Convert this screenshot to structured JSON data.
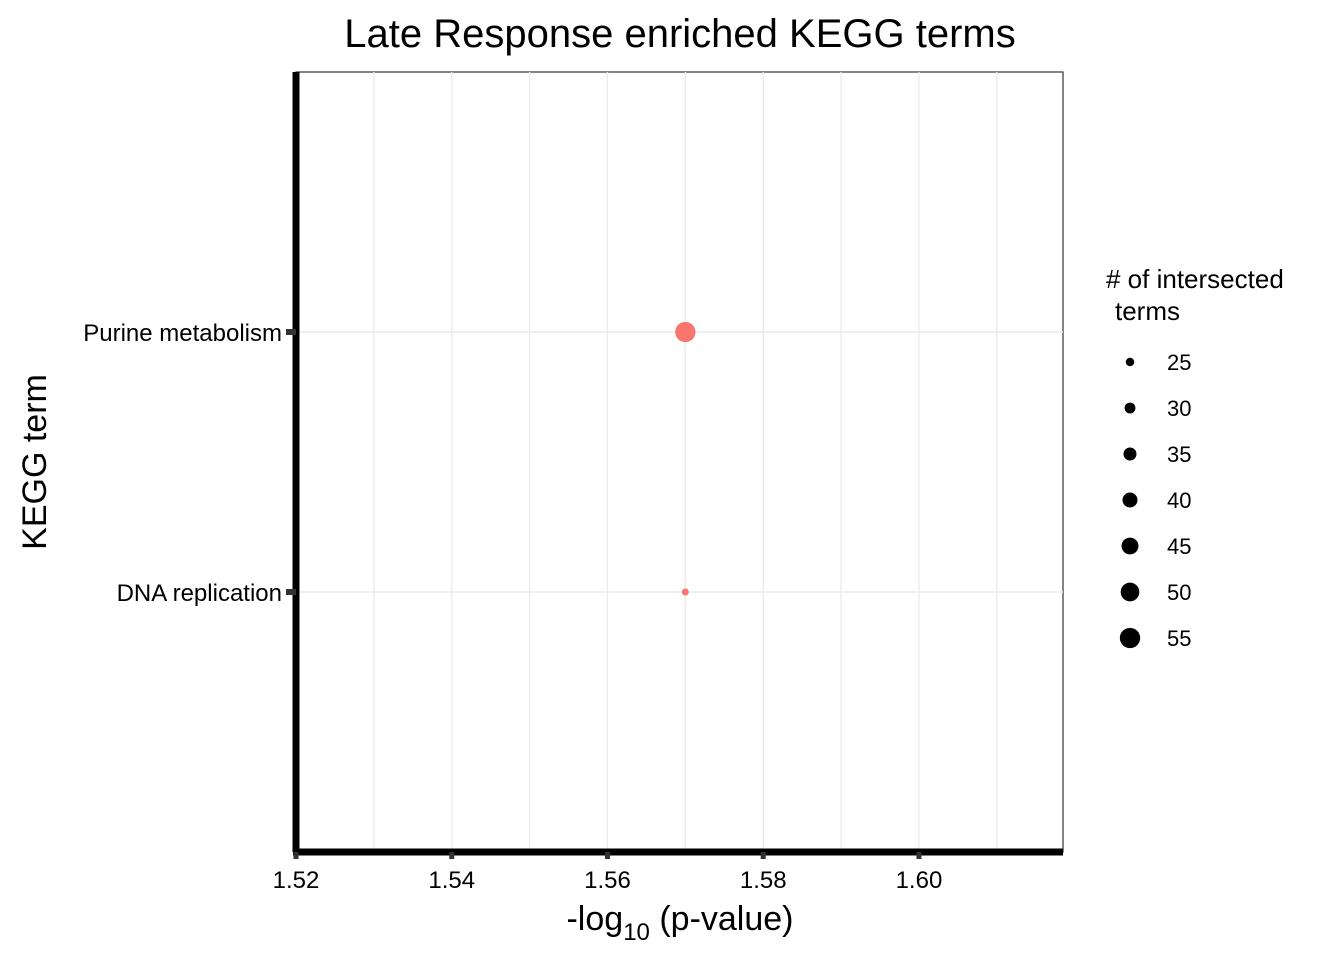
{
  "chart_data": {
    "type": "scatter",
    "title": "Late Response enriched KEGG terms",
    "xlabel": {
      "prefix": "-log",
      "subscript": "10",
      "suffix": " (p-value)"
    },
    "ylabel": "KEGG term",
    "x_ticks": [
      1.52,
      1.54,
      1.56,
      1.58,
      1.6
    ],
    "x_tick_labels": [
      "1.52",
      "1.54",
      "1.56",
      "1.58",
      "1.60"
    ],
    "xlim": [
      1.52,
      1.6185
    ],
    "categories": [
      "DNA replication",
      "Purine metabolism"
    ],
    "points": [
      {
        "term": "Purine metabolism",
        "x": 1.57,
        "size": 55,
        "color": "#F8766D"
      },
      {
        "term": "DNA replication",
        "x": 1.57,
        "size": 22,
        "color": "#F8766D"
      }
    ],
    "grid": true,
    "legend": {
      "title_line1": "# of intersected",
      "title_line2": "terms",
      "position": "right",
      "entries": [
        25,
        30,
        35,
        40,
        45,
        50,
        55
      ],
      "entry_labels": [
        "25",
        "30",
        "35",
        "40",
        "45",
        "50",
        "55"
      ]
    }
  }
}
